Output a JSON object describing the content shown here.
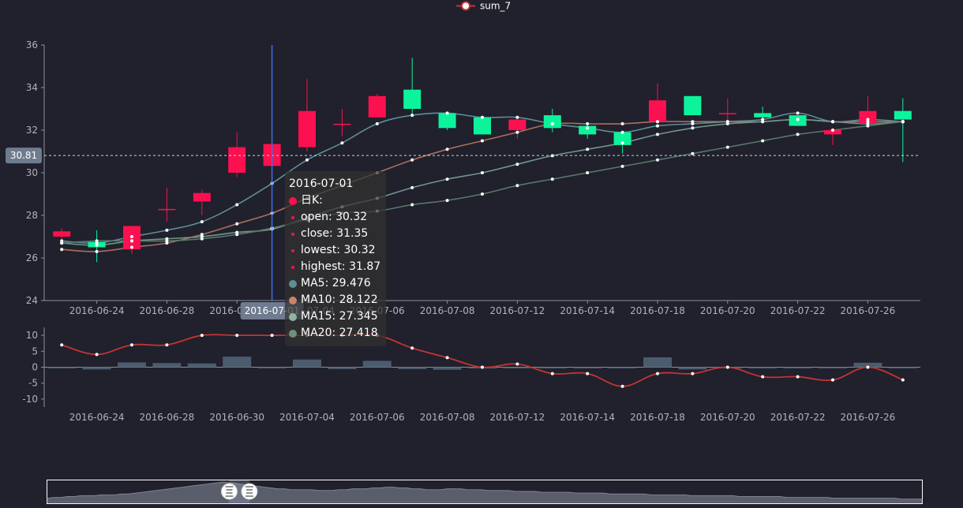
{
  "legend": {
    "label": "sum_7"
  },
  "colors": {
    "background": "#21202d",
    "up": "#ec0000",
    "candle_up": "#fd1050",
    "candle_down": "#0cf49b",
    "ma5": "#5d8e96",
    "ma10": "#a8705b",
    "ma15": "#6f9789",
    "ma20": "#58776a",
    "sum7": "#c23531",
    "volume": "#4b5c6e",
    "cursor": "#3f6fe0",
    "axis_label_bg": "#6f7b8e"
  },
  "crosshair": {
    "y_value_label": "30.81",
    "x_value_label": "2016-07-01",
    "y_value": 30.81,
    "x_index": 6
  },
  "tooltip": {
    "date": "2016-07-01",
    "series_name": "日K:",
    "rows": [
      {
        "label": "open: 30.32",
        "color": "#fd1050",
        "small": true
      },
      {
        "label": "close: 31.35",
        "color": "#fd1050",
        "small": true
      },
      {
        "label": "lowest: 30.32",
        "color": "#fd1050",
        "small": true
      },
      {
        "label": "highest: 31.87",
        "color": "#fd1050",
        "small": true
      },
      {
        "label": "MA5: 29.476",
        "color": "#5d8e96",
        "small": false
      },
      {
        "label": "MA10: 28.122",
        "color": "#c8856b",
        "small": false
      },
      {
        "label": "MA15: 27.345",
        "color": "#8fb4a1",
        "small": false
      },
      {
        "label": "MA20: 27.418",
        "color": "#6f8f7c",
        "small": false
      }
    ]
  },
  "chart_data": {
    "type": "candlestick",
    "x_tick_labels": [
      "2016-06-24",
      "2016-06-28",
      "2016-06-30",
      "2016-07-04",
      "2016-07-06",
      "2016-07-08",
      "2016-07-12",
      "2016-07-14",
      "2016-07-18",
      "2016-07-20",
      "2016-07-22",
      "2016-07-26"
    ],
    "main": {
      "ylim": [
        24,
        36
      ],
      "y_ticks": [
        24,
        26,
        28,
        30,
        32,
        34,
        36
      ],
      "candles": [
        {
          "open": 27.0,
          "close": 27.25,
          "low": 26.9,
          "high": 27.4
        },
        {
          "open": 26.75,
          "close": 26.5,
          "low": 25.8,
          "high": 27.3
        },
        {
          "open": 26.4,
          "close": 27.5,
          "low": 26.2,
          "high": 27.5
        },
        {
          "open": 28.3,
          "close": 28.3,
          "low": 27.7,
          "high": 29.3
        },
        {
          "open": 28.65,
          "close": 29.05,
          "low": 28.0,
          "high": 29.2
        },
        {
          "open": 30.0,
          "close": 31.2,
          "low": 29.8,
          "high": 31.9
        },
        {
          "open": 30.32,
          "close": 31.35,
          "low": 30.32,
          "high": 31.87
        },
        {
          "open": 31.2,
          "close": 32.9,
          "low": 31.0,
          "high": 34.4
        },
        {
          "open": 32.3,
          "close": 32.3,
          "low": 31.7,
          "high": 33.0
        },
        {
          "open": 32.6,
          "close": 33.6,
          "low": 32.6,
          "high": 33.7
        },
        {
          "open": 33.9,
          "close": 33.0,
          "low": 32.7,
          "high": 35.4
        },
        {
          "open": 32.8,
          "close": 32.1,
          "low": 32.0,
          "high": 32.8
        },
        {
          "open": 32.6,
          "close": 31.8,
          "low": 31.8,
          "high": 32.6
        },
        {
          "open": 32.0,
          "close": 32.5,
          "low": 31.6,
          "high": 32.6
        },
        {
          "open": 32.7,
          "close": 32.1,
          "low": 31.9,
          "high": 33.0
        },
        {
          "open": 32.2,
          "close": 31.8,
          "low": 31.6,
          "high": 32.3
        },
        {
          "open": 31.9,
          "close": 31.3,
          "low": 30.9,
          "high": 31.9
        },
        {
          "open": 32.4,
          "close": 33.4,
          "low": 32.3,
          "high": 34.2
        },
        {
          "open": 33.6,
          "close": 32.7,
          "low": 32.7,
          "high": 33.6
        },
        {
          "open": 32.8,
          "close": 32.8,
          "low": 32.4,
          "high": 33.5
        },
        {
          "open": 32.8,
          "close": 32.6,
          "low": 32.4,
          "high": 33.1
        },
        {
          "open": 32.7,
          "close": 32.2,
          "low": 32.2,
          "high": 32.7
        },
        {
          "open": 31.8,
          "close": 32.0,
          "low": 31.3,
          "high": 32.1
        },
        {
          "open": 32.3,
          "close": 32.9,
          "low": 32.2,
          "high": 33.6
        },
        {
          "open": 32.9,
          "close": 32.5,
          "low": 30.5,
          "high": 33.5
        }
      ],
      "series": [
        {
          "name": "MA5",
          "values": [
            26.8,
            26.7,
            27.0,
            27.3,
            27.7,
            28.5,
            29.5,
            30.6,
            31.4,
            32.3,
            32.7,
            32.8,
            32.6,
            32.6,
            32.3,
            32.1,
            31.9,
            32.2,
            32.3,
            32.4,
            32.5,
            32.8,
            32.4,
            32.5,
            32.4
          ]
        },
        {
          "name": "MA10",
          "values": [
            26.4,
            26.3,
            26.5,
            26.7,
            27.1,
            27.6,
            28.1,
            28.8,
            29.4,
            30.0,
            30.6,
            31.1,
            31.5,
            31.9,
            32.3,
            32.3,
            32.3,
            32.4,
            32.4,
            32.4,
            32.4,
            32.5,
            32.4,
            32.4,
            32.4
          ]
        },
        {
          "name": "MA15",
          "values": [
            26.7,
            26.6,
            26.8,
            26.9,
            27.0,
            27.2,
            27.35,
            27.9,
            28.4,
            28.8,
            29.3,
            29.7,
            30.0,
            30.4,
            30.8,
            31.1,
            31.4,
            31.8,
            32.1,
            32.3,
            32.4,
            32.5,
            32.4,
            32.3,
            32.4
          ]
        },
        {
          "name": "MA20",
          "values": [
            26.7,
            26.8,
            26.8,
            26.8,
            26.9,
            27.1,
            27.4,
            27.8,
            28.1,
            28.2,
            28.5,
            28.7,
            29.0,
            29.4,
            29.7,
            30.0,
            30.3,
            30.6,
            30.9,
            31.2,
            31.5,
            31.8,
            32.0,
            32.2,
            32.4
          ]
        }
      ]
    },
    "sub": {
      "ylim": [
        -12.5,
        12.5
      ],
      "y_ticks": [
        10,
        5,
        0,
        -5,
        -10
      ],
      "sum_7": {
        "name": "sum_7",
        "values": [
          7,
          4,
          7,
          7,
          10,
          10,
          10,
          10,
          10,
          10,
          6,
          3,
          0,
          1,
          -2,
          -2,
          -6,
          -2,
          -2,
          0,
          -3,
          -3,
          -4,
          0,
          -4
        ]
      },
      "volume": [
        -0.2,
        -0.7,
        1.5,
        1.3,
        1.2,
        3.3,
        -0.2,
        2.4,
        -0.6,
        2.0,
        -0.6,
        -0.8,
        -0.4,
        -0.3,
        -0.3,
        -0.3,
        -0.3,
        3.1,
        -0.7,
        -0.3,
        -0.3,
        -0.3,
        -0.3,
        1.4,
        -0.3
      ]
    },
    "minimap": {
      "values": [
        5,
        6,
        6,
        7,
        7,
        8,
        8,
        8,
        9,
        9,
        9,
        10,
        10,
        11,
        12,
        13,
        14,
        15,
        16,
        17,
        18,
        19,
        20,
        21,
        22,
        23,
        24,
        23,
        22,
        21,
        20,
        19,
        18,
        17,
        16,
        16,
        15,
        15,
        15,
        15,
        14,
        14,
        14,
        15,
        15,
        16,
        16,
        16,
        17,
        17,
        18,
        18,
        17,
        17,
        16,
        16,
        15,
        15,
        15,
        16,
        16,
        16,
        15,
        15,
        15,
        14,
        14,
        14,
        14,
        13,
        13,
        13,
        13,
        12,
        12,
        12,
        12,
        12,
        11,
        11,
        11,
        11,
        11,
        10,
        10,
        10,
        10,
        10,
        10,
        9,
        9,
        9,
        9,
        9,
        9,
        8,
        8,
        8,
        8,
        8,
        8,
        8,
        7,
        7,
        7,
        7,
        7,
        7,
        7,
        6,
        6,
        6,
        6,
        6,
        6,
        6,
        5,
        5,
        5,
        5,
        5,
        5,
        5,
        5,
        5,
        5,
        4,
        4,
        4,
        4
      ],
      "handle_start": 0.208,
      "handle_end": 0.231
    }
  }
}
